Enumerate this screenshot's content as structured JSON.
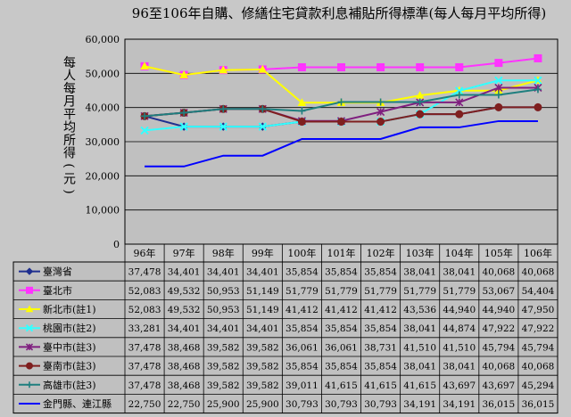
{
  "chart_data": {
    "type": "line",
    "title": "96至106年自購、修繕住宅貸款利息補貼所得標準(每人每月平均所得)",
    "ylabel": "每人每月平均所得(元)",
    "ylim": [
      0,
      60000
    ],
    "yticks": [
      0,
      10000,
      20000,
      30000,
      40000,
      50000,
      60000
    ],
    "ytick_labels": [
      "0",
      "10,000",
      "20,000",
      "30,000",
      "40,000",
      "50,000",
      "60,000"
    ],
    "grid": true,
    "legend": "data-table-below",
    "categories": [
      "96年",
      "97年",
      "98年",
      "99年",
      "100年",
      "101年",
      "102年",
      "103年",
      "104年",
      "105年",
      "106年"
    ],
    "series": [
      {
        "name": "臺灣省",
        "color": "#1f2f8f",
        "marker": "diamond",
        "values": [
          37478,
          34401,
          34401,
          34401,
          35854,
          35854,
          35854,
          38041,
          38041,
          40068,
          40068
        ],
        "labels": [
          "37,478",
          "34,401",
          "34,401",
          "34,401",
          "35,854",
          "35,854",
          "35,854",
          "38,041",
          "38,041",
          "40,068",
          "40,068"
        ]
      },
      {
        "name": "臺北市",
        "color": "#ff33ff",
        "marker": "square",
        "values": [
          52083,
          49532,
          50953,
          51149,
          51779,
          51779,
          51779,
          51779,
          51779,
          53067,
          54404
        ],
        "labels": [
          "52,083",
          "49,532",
          "50,953",
          "51,149",
          "51,779",
          "51,779",
          "51,779",
          "51,779",
          "51,779",
          "53,067",
          "54,404"
        ]
      },
      {
        "name": "新北市(註1)",
        "color": "#ffff00",
        "marker": "triangle",
        "values": [
          52083,
          49532,
          50953,
          51149,
          41412,
          41412,
          41412,
          43536,
          44940,
          44940,
          47950
        ],
        "labels": [
          "52,083",
          "49,532",
          "50,953",
          "51,149",
          "41,412",
          "41,412",
          "41,412",
          "43,536",
          "44,940",
          "44,940",
          "47,950"
        ]
      },
      {
        "name": "桃園市(註2)",
        "color": "#33ffff",
        "marker": "x",
        "values": [
          33281,
          34401,
          34401,
          34401,
          35854,
          35854,
          35854,
          38041,
          44874,
          47922,
          47922
        ],
        "labels": [
          "33,281",
          "34,401",
          "34,401",
          "34,401",
          "35,854",
          "35,854",
          "35,854",
          "38,041",
          "44,874",
          "47,922",
          "47,922"
        ]
      },
      {
        "name": "臺中市(註3)",
        "color": "#7f1f7f",
        "marker": "star",
        "values": [
          37478,
          38468,
          39582,
          39582,
          36061,
          36061,
          38731,
          41510,
          41510,
          45794,
          45794
        ],
        "labels": [
          "37,478",
          "38,468",
          "39,582",
          "39,582",
          "36,061",
          "36,061",
          "38,731",
          "41,510",
          "41,510",
          "45,794",
          "45,794"
        ]
      },
      {
        "name": "臺南市(註3)",
        "color": "#7f1f1f",
        "marker": "circle",
        "values": [
          37478,
          38468,
          39582,
          39582,
          35854,
          35854,
          35854,
          38041,
          38041,
          40068,
          40068
        ],
        "labels": [
          "37,478",
          "38,468",
          "39,582",
          "39,582",
          "35,854",
          "35,854",
          "35,854",
          "38,041",
          "38,041",
          "40,068",
          "40,068"
        ]
      },
      {
        "name": "高雄市(註3)",
        "color": "#1f7f7f",
        "marker": "plus",
        "values": [
          37478,
          38468,
          39582,
          39582,
          39011,
          41615,
          41615,
          41615,
          43697,
          43697,
          45294
        ],
        "labels": [
          "37,478",
          "38,468",
          "39,582",
          "39,582",
          "39,011",
          "41,615",
          "41,615",
          "41,615",
          "43,697",
          "43,697",
          "45,294"
        ]
      },
      {
        "name": "金門縣、連江縣",
        "color": "#0000ff",
        "marker": "none",
        "values": [
          22750,
          22750,
          25900,
          25900,
          30793,
          30793,
          30793,
          34191,
          34191,
          36015,
          36015
        ],
        "labels": [
          "22,750",
          "22,750",
          "25,900",
          "25,900",
          "30,793",
          "30,793",
          "30,793",
          "34,191",
          "34,191",
          "36,015",
          "36,015"
        ]
      }
    ]
  }
}
